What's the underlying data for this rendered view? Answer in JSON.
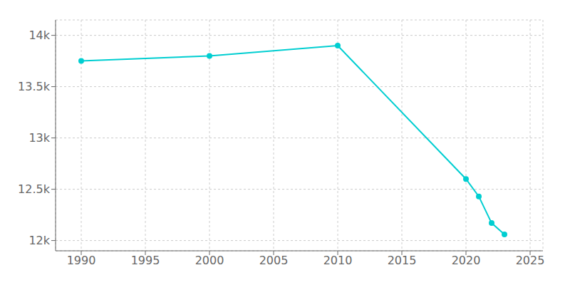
{
  "chart_data": {
    "type": "line",
    "x": [
      1990,
      2000,
      2010,
      2020,
      2021,
      2022,
      2023
    ],
    "values": [
      13750,
      13800,
      13900,
      12600,
      12430,
      12170,
      12060
    ],
    "color": "#00CED1",
    "marker": "circle",
    "xlim": [
      1988,
      2026
    ],
    "xticks": [
      1990,
      1995,
      2000,
      2005,
      2010,
      2015,
      2020,
      2025
    ],
    "ylim": [
      11900,
      14150
    ],
    "yticks": [
      {
        "value": 12000,
        "label": "12k"
      },
      {
        "value": 12500,
        "label": "12.5k"
      },
      {
        "value": 13000,
        "label": "13k"
      },
      {
        "value": 13500,
        "label": "13.5k"
      },
      {
        "value": 14000,
        "label": "14k"
      }
    ],
    "grid": true
  }
}
